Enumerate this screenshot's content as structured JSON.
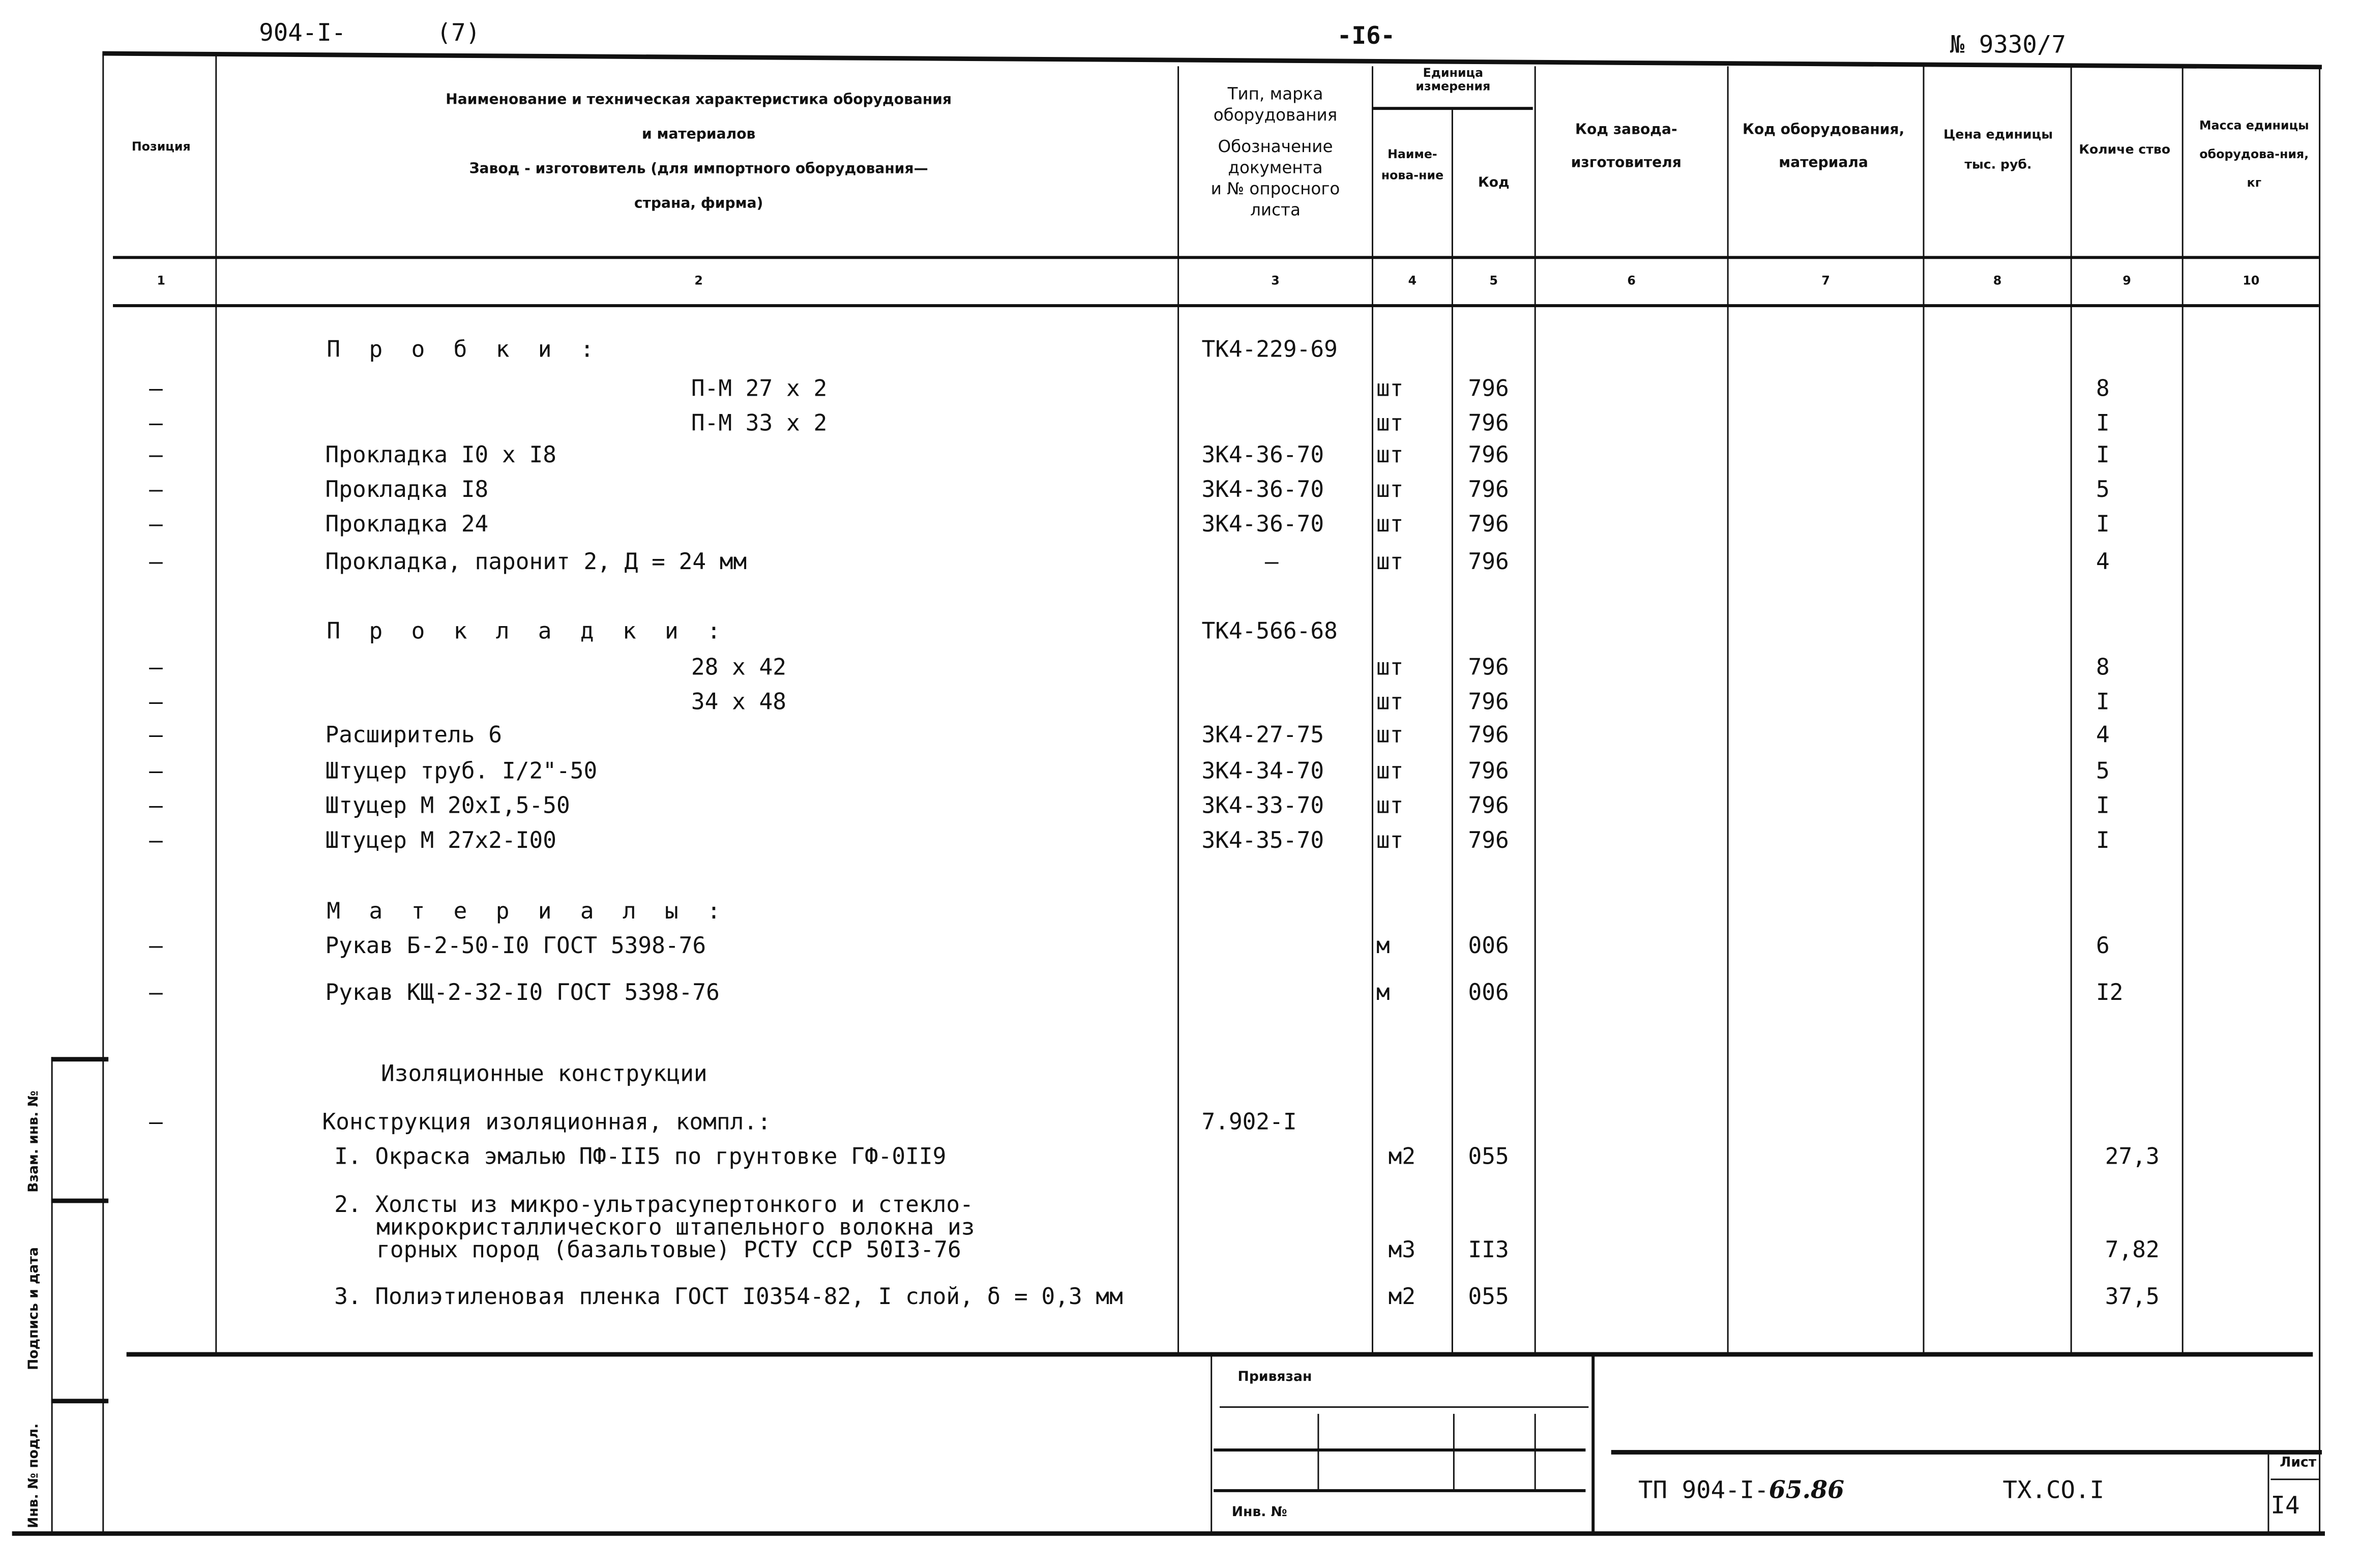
{
  "top": {
    "left_code": "904-I-",
    "left_num": "(7)",
    "page": "-I6-",
    "right_num": "№ 9330/7"
  },
  "header": {
    "col1": "Позиция",
    "col2_l1": "Наименование и техническая характеристика оборудования",
    "col2_l2": "и материалов",
    "col2_l3": "Завод - изготовитель (для импортного оборудования—",
    "col2_l4": "страна, фирма)",
    "col3_l1": "Тип, марка",
    "col3_l2": "оборудования",
    "col3_l3": "Обозначение",
    "col3_l4": "документа",
    "col3_l5": "и № опросного",
    "col3_l6": "листа",
    "unit_group": "Единица измерения",
    "col4": "Наиме-нова-ние",
    "col5": "Код",
    "col6": "Код завода-изготовителя",
    "col7": "Код оборудования, материала",
    "col8": "Цена единицы тыс. руб.",
    "col9": "Количе ство",
    "col10": "Масса единицы оборудова-ния, кг",
    "numbers": [
      "1",
      "2",
      "3",
      "4",
      "5",
      "6",
      "7",
      "8",
      "9",
      "10"
    ]
  },
  "rows": [
    {
      "pos": "",
      "name": "П р о б к и :",
      "doc": "ТК4-229-69",
      "unit": "",
      "code": "",
      "qty": "",
      "indent": "section"
    },
    {
      "pos": "–",
      "name": "П-М 27 х 2",
      "doc": "",
      "unit": "шт",
      "code": "796",
      "qty": "8",
      "indent": "sub"
    },
    {
      "pos": "–",
      "name": "П-М 33 х 2",
      "doc": "",
      "unit": "шт",
      "code": "796",
      "qty": "I",
      "indent": "sub"
    },
    {
      "pos": "–",
      "name": "Прокладка I0 х I8",
      "doc": "3К4-36-70",
      "unit": "шт",
      "code": "796",
      "qty": "I",
      "indent": "item"
    },
    {
      "pos": "–",
      "name": "Прокладка I8",
      "doc": "3К4-36-70",
      "unit": "шт",
      "code": "796",
      "qty": "5",
      "indent": "item"
    },
    {
      "pos": "–",
      "name": "Прокладка 24",
      "doc": "3К4-36-70",
      "unit": "шт",
      "code": "796",
      "qty": "I",
      "indent": "item"
    },
    {
      "pos": "–",
      "name": "Прокладка, паронит 2, Д = 24 мм",
      "doc": "–",
      "unit": "шт",
      "code": "796",
      "qty": "4",
      "indent": "item"
    },
    {
      "pos": "",
      "name": "П р о к л а д к и :",
      "doc": "ТК4-566-68",
      "unit": "",
      "code": "",
      "qty": "",
      "indent": "section"
    },
    {
      "pos": "–",
      "name": "28 х 42",
      "doc": "",
      "unit": "шт",
      "code": "796",
      "qty": "8",
      "indent": "sub"
    },
    {
      "pos": "–",
      "name": "34 х 48",
      "doc": "",
      "unit": "шт",
      "code": "796",
      "qty": "I",
      "indent": "sub"
    },
    {
      "pos": "–",
      "name": "Расширитель 6",
      "doc": "3К4-27-75",
      "unit": "шт",
      "code": "796",
      "qty": "4",
      "indent": "item"
    },
    {
      "pos": "–",
      "name": "Штуцер труб. I/2\"-50",
      "doc": "3К4-34-70",
      "unit": "шт",
      "code": "796",
      "qty": "5",
      "indent": "item"
    },
    {
      "pos": "–",
      "name": "Штуцер М 20хI,5-50",
      "doc": "3К4-33-70",
      "unit": "шт",
      "code": "796",
      "qty": "I",
      "indent": "item"
    },
    {
      "pos": "–",
      "name": "Штуцер М 27х2-I00",
      "doc": "3К4-35-70",
      "unit": "шт",
      "code": "796",
      "qty": "I",
      "indent": "item"
    },
    {
      "pos": "",
      "name": "М а т е р и а л ы :",
      "doc": "",
      "unit": "",
      "code": "",
      "qty": "",
      "indent": "section"
    },
    {
      "pos": "–",
      "name": "Рукав Б-2-50-I0 ГОСТ 5398-76",
      "doc": "",
      "unit": "м",
      "code": "006",
      "qty": "6",
      "indent": "item"
    },
    {
      "pos": "–",
      "name": "Рукав КЩ-2-32-I0 ГОСТ 5398-76",
      "doc": "",
      "unit": "м",
      "code": "006",
      "qty": "I2",
      "indent": "item"
    },
    {
      "pos": "",
      "name": "Изоляционные конструкции",
      "doc": "",
      "unit": "",
      "code": "",
      "qty": "",
      "indent": "heading"
    },
    {
      "pos": "–",
      "name": "Конструкция изоляционная, компл.:",
      "doc": "7.902-I",
      "unit": "",
      "code": "",
      "qty": "",
      "indent": "item2"
    },
    {
      "pos": "",
      "name": "I. Окраска эмалью ПФ-II5 по грунтовке ГФ-0II9",
      "doc": "",
      "unit": "м2",
      "code": "055",
      "qty": "27,3",
      "indent": "num"
    },
    {
      "pos": "",
      "name": "2. Холсты из микро-ультрасупертонкого и стекло-",
      "doc": "",
      "unit": "",
      "code": "",
      "qty": "",
      "indent": "num"
    },
    {
      "pos": "",
      "name": "микрокристаллического штапельного волокна из",
      "doc": "",
      "unit": "",
      "code": "",
      "qty": "",
      "indent": "cont"
    },
    {
      "pos": "",
      "name": "горных пород (базальтовые) РСТУ ССР 50I3-76",
      "doc": "",
      "unit": "м3",
      "code": "II3",
      "qty": "7,82",
      "indent": "cont"
    },
    {
      "pos": "",
      "name": "3. Полиэтиленовая пленка ГОСТ I0354-82, I слой, δ = 0,3 мм",
      "doc": "",
      "unit": "м2",
      "code": "055",
      "qty": "37,5",
      "indent": "num"
    }
  ],
  "stamp": {
    "bound_label": "Привязан",
    "inv_label": "Инв. №",
    "doc_code": "ТП 904-I-",
    "doc_code_hand": "65.86",
    "sheet_code": "ТХ.СО.I",
    "sheet_label": "Лист",
    "sheet_number": "I4"
  },
  "side": {
    "replace_inv": "Взам. инв. №",
    "signature_date": "Подпись и дата",
    "inv_orig": "Инв. № подл."
  }
}
